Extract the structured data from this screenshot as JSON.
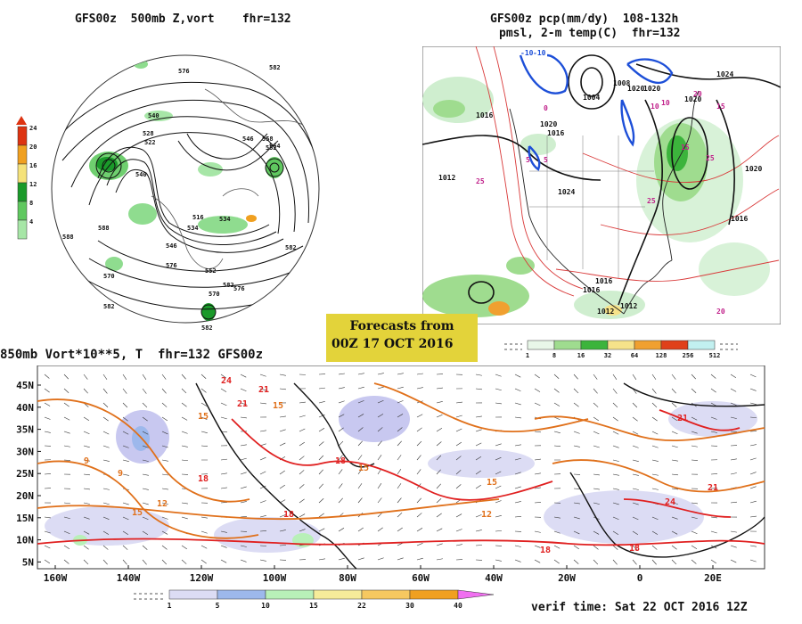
{
  "panels": {
    "hemispheric": {
      "title": "GFS00z  500mb Z,vort    fhr=132",
      "scale_ticks": [
        "24",
        "20",
        "16",
        "12",
        "8",
        "4"
      ],
      "scale_colors": [
        "#dd3311",
        "#f0a020",
        "#f5e27a",
        "#1a9a2a",
        "#5fc85f",
        "#a7e6a7"
      ],
      "contour_labels": [
        "576",
        "582",
        "540",
        "528",
        "522",
        "516",
        "546",
        "534",
        "552",
        "564",
        "588",
        "570",
        "576",
        "582",
        "558",
        "582",
        "546",
        "540",
        "552",
        "534",
        "570",
        "576",
        "582",
        "588",
        "582"
      ]
    },
    "precip": {
      "title_line1": "GFS00z pcp(mm/dy)  108-132h",
      "title_line2": "pmsl, 2-m temp(C)  fhr=132",
      "pressure_labels": [
        "1016",
        "1016",
        "1012",
        "1020",
        "1024",
        "1008",
        "1004",
        "1020",
        "1020",
        "1024",
        "1020",
        "1016",
        "1016",
        "1016",
        "1012",
        "1012",
        "1020"
      ],
      "temp_labels": [
        "-10",
        "-10",
        "0",
        "5",
        "10",
        "15",
        "20",
        "25",
        "25",
        "20",
        "15",
        "10",
        "25",
        "5"
      ],
      "scale_ticks": [
        "1",
        "8",
        "16",
        "32",
        "64",
        "128",
        "256",
        "512"
      ],
      "scale_colors": [
        "#e8f7e8",
        "#9fdc8f",
        "#3cb43c",
        "#f6e28a",
        "#f0a030",
        "#e0401a",
        "#c2f0f0"
      ]
    },
    "forecast_box": {
      "line1": "Forecasts from",
      "line2": "00Z 17 OCT 2016"
    },
    "tropical": {
      "title": "850mb Vort*10**5, T  fhr=132 GFS00z",
      "lat_labels": [
        "45N",
        "40N",
        "35N",
        "30N",
        "25N",
        "20N",
        "15N",
        "10N",
        "5N"
      ],
      "lon_labels": [
        "160W",
        "140W",
        "120W",
        "100W",
        "80W",
        "60W",
        "40W",
        "20W",
        "0",
        "20E"
      ],
      "temp_labels": [
        "15",
        "18",
        "21",
        "15",
        "9",
        "12",
        "15",
        "18",
        "21",
        "24",
        "18",
        "15",
        "21",
        "24",
        "18",
        "12",
        "15",
        "9",
        "18",
        "21"
      ],
      "scale_ticks": [
        "1",
        "5",
        "10",
        "15",
        "22",
        "30",
        "40"
      ],
      "scale_colors": [
        "#dcdcf4",
        "#9db8ec",
        "#b8f0b8",
        "#f6ec9a",
        "#f6c860",
        "#f0a020",
        "#f070f0"
      ],
      "verif_time": "verif time: Sat 22 OCT 2016 12Z"
    }
  },
  "colors": {
    "contour": "#111111",
    "warm_temp": "#e0701a",
    "hot_temp": "#e02020",
    "low_pressure": "#1d4fd8",
    "forecast_box": "#e3d33a"
  }
}
